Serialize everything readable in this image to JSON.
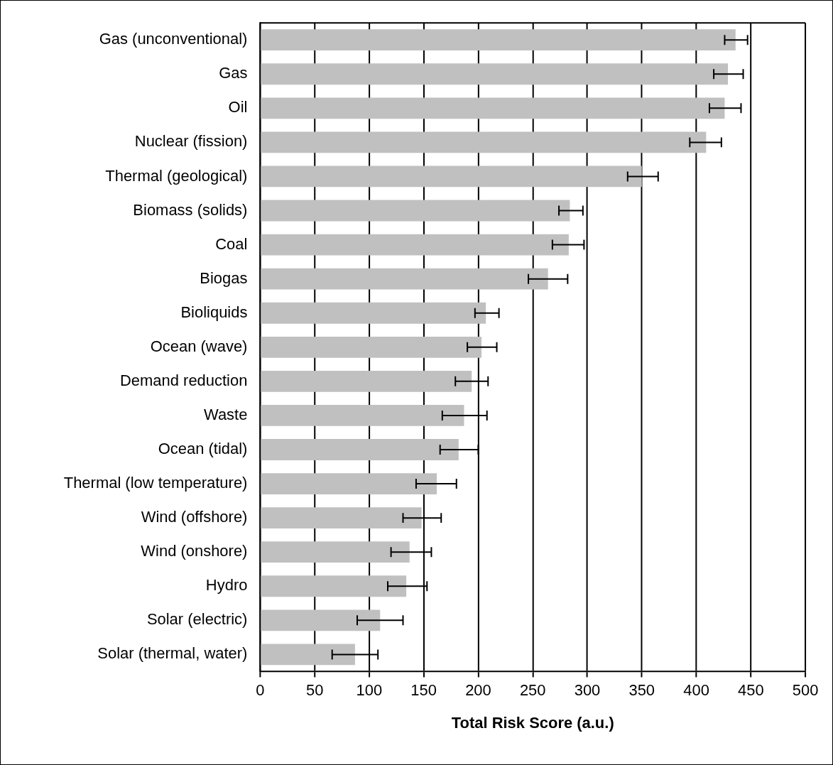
{
  "chart_data": {
    "type": "bar",
    "orientation": "horizontal",
    "xlabel": "Total Risk Score (a.u.)",
    "categories": [
      "Gas (unconventional)",
      "Gas",
      "Oil",
      "Nuclear (fission)",
      "Thermal (geological)",
      "Biomass (solids)",
      "Coal",
      "Biogas",
      "Bioliquids",
      "Ocean (wave)",
      "Demand reduction",
      "Waste",
      "Ocean (tidal)",
      "Thermal (low temperature)",
      "Wind (offshore)",
      "Wind (onshore)",
      "Hydro",
      "Solar (electric)",
      "Solar (thermal, water)"
    ],
    "values": [
      436,
      429,
      426,
      409,
      350,
      284,
      283,
      264,
      207,
      203,
      194,
      187,
      182,
      162,
      148,
      137,
      134,
      110,
      87
    ],
    "errors": [
      [
        426,
        447
      ],
      [
        416,
        443
      ],
      [
        412,
        441
      ],
      [
        394,
        423
      ],
      [
        337,
        365
      ],
      [
        274,
        296
      ],
      [
        268,
        297
      ],
      [
        246,
        282
      ],
      [
        197,
        219
      ],
      [
        190,
        217
      ],
      [
        179,
        209
      ],
      [
        167,
        208
      ],
      [
        165,
        200
      ],
      [
        143,
        180
      ],
      [
        131,
        166
      ],
      [
        120,
        157
      ],
      [
        117,
        153
      ],
      [
        89,
        131
      ],
      [
        66,
        108
      ]
    ],
    "color": "#c0c0c0",
    "xlim": [
      0,
      500
    ],
    "xticks": [
      0,
      50,
      100,
      150,
      200,
      250,
      300,
      350,
      400,
      450,
      500
    ],
    "grid": "x"
  }
}
